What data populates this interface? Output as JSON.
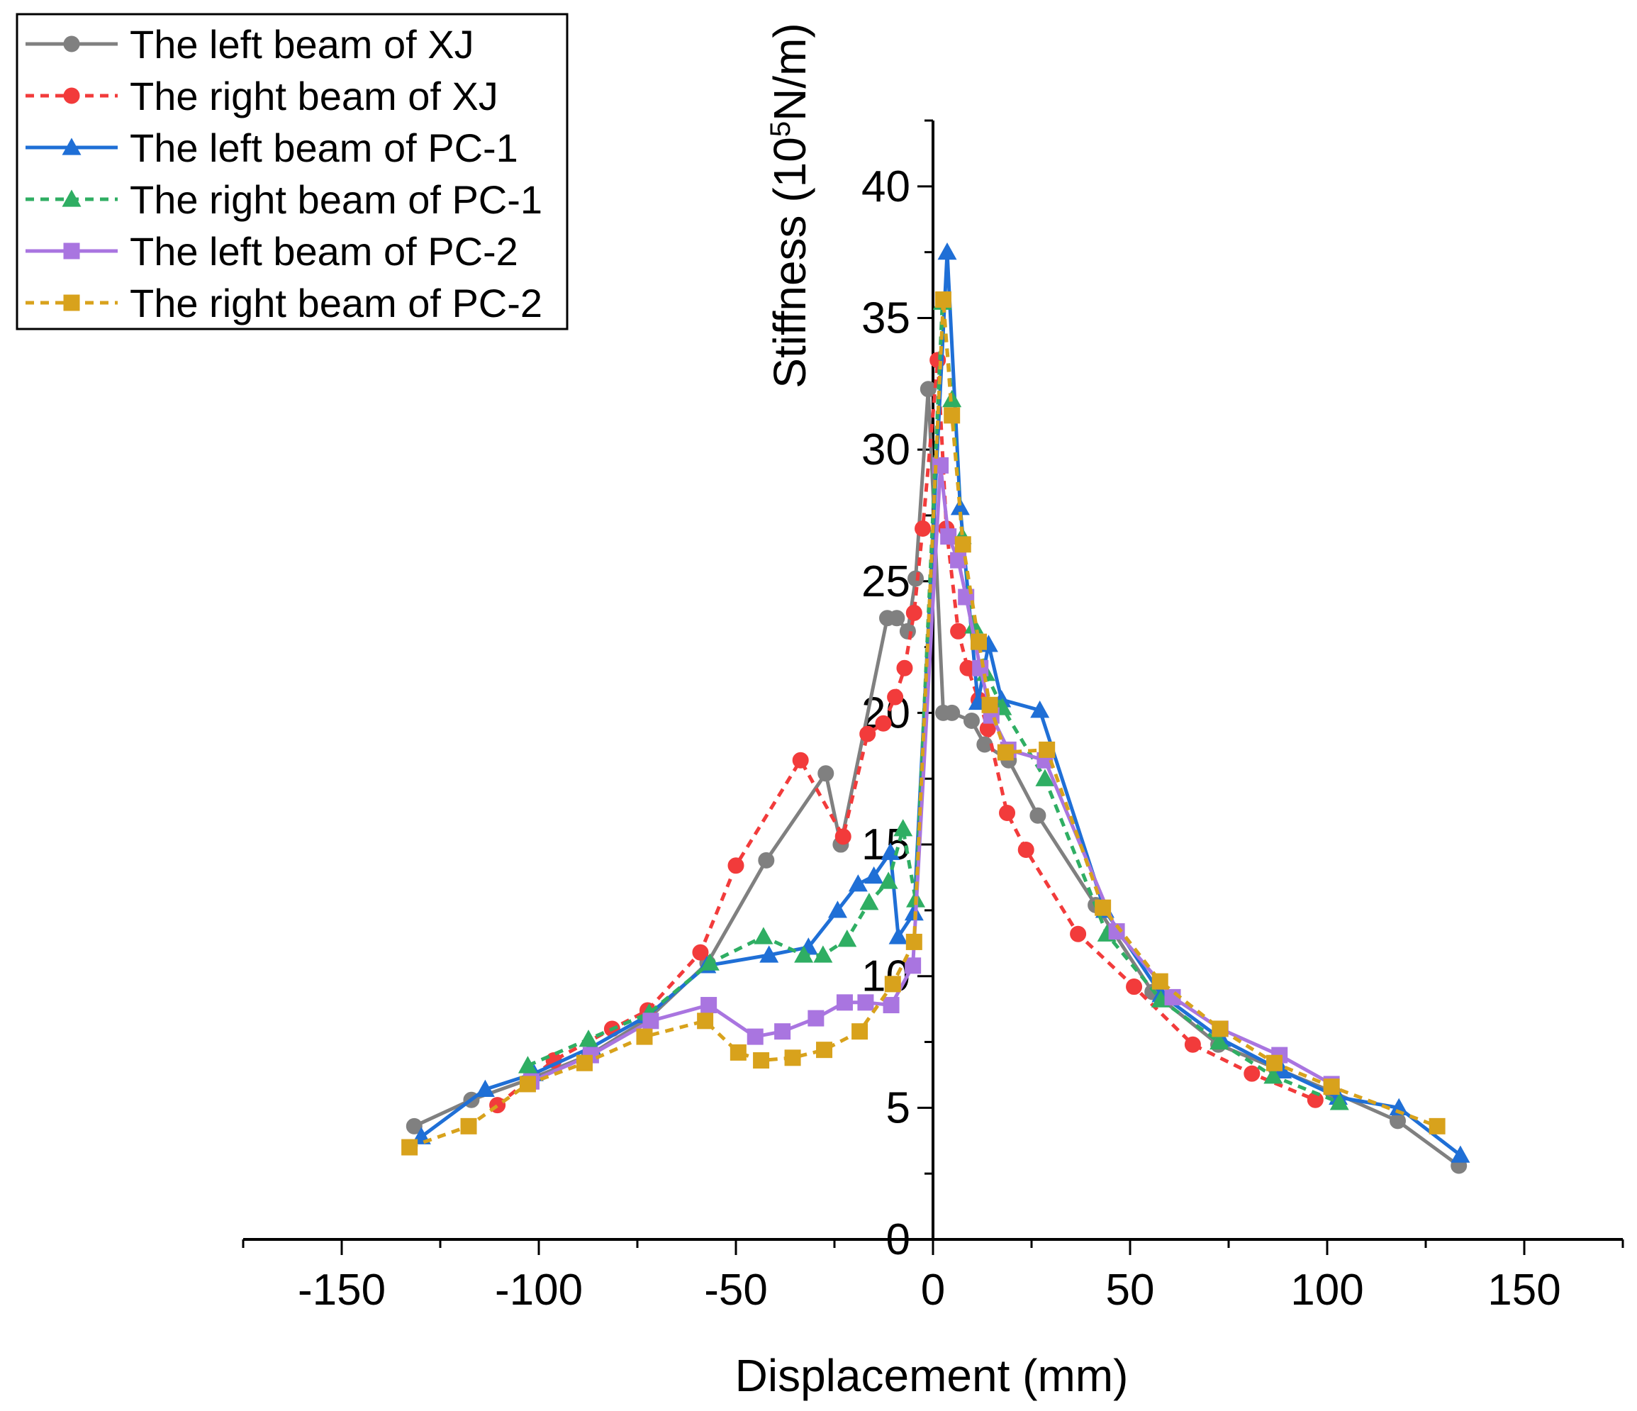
{
  "chart_data": {
    "type": "line",
    "xlabel": "Displacement (mm)",
    "ylabel_prefix": "Stiffness (10",
    "ylabel_sup": "5",
    "ylabel_suffix": "N/m)",
    "xlim": [
      -175,
      175
    ],
    "ylim": [
      0,
      42.5
    ],
    "x_ticks": [
      -150,
      -100,
      -50,
      0,
      50,
      100,
      150
    ],
    "x_tick_labels": [
      "-150",
      "-100",
      "-50",
      "0",
      "50",
      "100",
      "150"
    ],
    "y_ticks": [
      0,
      5,
      10,
      15,
      20,
      25,
      30,
      35,
      40
    ],
    "y_tick_labels": [
      "0",
      "5",
      "10",
      "15",
      "20",
      "25",
      "30",
      "35",
      "40"
    ],
    "grid": false,
    "legend_position": "top-left",
    "series": [
      {
        "name": "The left beam of XJ",
        "color": "#808080",
        "dashed": false,
        "marker": "circle",
        "x": [
          -131.6,
          -117.1,
          -102.1,
          -87.2,
          -72.1,
          -57.2,
          -42.3,
          -27.2,
          -23.4,
          -11.6,
          -9.2,
          -6.4,
          -4.4,
          -1.2,
          2.6,
          4.8,
          9.8,
          13.1,
          19.2,
          26.6,
          41.3,
          55.7,
          72.4,
          87.0,
          101.4,
          117.9,
          133.4
        ],
        "y": [
          4.3,
          5.3,
          6.1,
          7.0,
          8.4,
          10.5,
          14.4,
          17.7,
          15.0,
          23.6,
          23.6,
          23.1,
          25.1,
          32.3,
          20.0,
          20.0,
          19.7,
          18.8,
          18.2,
          16.1,
          12.7,
          9.4,
          7.4,
          6.5,
          5.6,
          4.5,
          2.8
        ]
      },
      {
        "name": "The right beam of XJ",
        "color": "#f23b3b",
        "dashed": true,
        "marker": "circle",
        "x": [
          -110.5,
          -96.2,
          -81.4,
          -72.4,
          -59.0,
          -50.0,
          -33.6,
          -22.8,
          -16.6,
          -12.6,
          -9.6,
          -7.2,
          -4.8,
          -2.6,
          1.2,
          3.4,
          6.4,
          8.8,
          11.6,
          13.9,
          18.8,
          23.6,
          36.8,
          51.0,
          65.9,
          80.9,
          97.0
        ],
        "y": [
          5.1,
          6.8,
          8.0,
          8.7,
          10.9,
          14.2,
          18.2,
          15.3,
          19.2,
          19.6,
          20.6,
          21.7,
          23.8,
          27.0,
          33.4,
          27.0,
          23.1,
          21.7,
          20.5,
          19.4,
          16.2,
          14.8,
          11.6,
          9.6,
          7.4,
          6.3,
          5.3
        ]
      },
      {
        "name": "The left beam of PC-1",
        "color": "#1f6fd6",
        "dashed": false,
        "marker": "triangle",
        "x": [
          -129.8,
          -113.6,
          -101.2,
          -86.6,
          -72.4,
          -57.4,
          -41.6,
          -31.6,
          -24.2,
          -19.0,
          -15.0,
          -10.8,
          -8.8,
          -4.8,
          3.6,
          6.9,
          11.4,
          14.1,
          17.4,
          27.1,
          43.6,
          57.9,
          73.2,
          88.6,
          102.8,
          118.2,
          133.8
        ],
        "y": [
          3.9,
          5.7,
          6.3,
          7.3,
          8.5,
          10.4,
          10.8,
          11.1,
          12.5,
          13.5,
          13.8,
          14.7,
          11.5,
          12.4,
          37.5,
          27.8,
          20.4,
          22.6,
          20.5,
          20.1,
          12.5,
          9.3,
          7.6,
          6.4,
          5.4,
          5.0,
          3.2
        ]
      },
      {
        "name": "The right beam of PC-1",
        "color": "#2fae63",
        "dashed": true,
        "marker": "triangle",
        "x": [
          -102.8,
          -87.4,
          -72.0,
          -56.6,
          -43.0,
          -32.8,
          -27.9,
          -21.8,
          -16.2,
          -11.3,
          -7.6,
          -4.4,
          2.4,
          4.8,
          7.4,
          10.4,
          13.4,
          17.6,
          28.4,
          44.1,
          57.8,
          72.6,
          86.3,
          103.1
        ],
        "y": [
          6.6,
          7.6,
          8.6,
          10.5,
          11.5,
          10.8,
          10.8,
          11.4,
          12.8,
          13.6,
          15.6,
          12.9,
          35.6,
          31.9,
          26.7,
          23.3,
          21.5,
          20.2,
          17.5,
          11.6,
          9.1,
          7.5,
          6.2,
          5.2
        ]
      },
      {
        "name": "The left beam of PC-2",
        "color": "#a975e0",
        "dashed": false,
        "marker": "square",
        "x": [
          -101.9,
          -86.8,
          -71.6,
          -56.9,
          -45.1,
          -38.2,
          -29.7,
          -22.4,
          -17.1,
          -10.6,
          -5.1,
          1.9,
          3.9,
          6.4,
          8.4,
          12.0,
          14.8,
          19.1,
          28.4,
          46.6,
          60.8,
          72.9,
          87.9,
          101.1
        ],
        "y": [
          6.0,
          7.0,
          8.3,
          8.9,
          7.7,
          7.9,
          8.4,
          9.0,
          9.0,
          8.9,
          10.4,
          29.4,
          26.7,
          25.8,
          24.4,
          21.7,
          19.9,
          18.6,
          18.2,
          11.7,
          9.2,
          8.0,
          7.0,
          5.9
        ]
      },
      {
        "name": "The right beam of PC-2",
        "color": "#d8a21c",
        "dashed": true,
        "marker": "square",
        "x": [
          -132.8,
          -117.8,
          -102.8,
          -88.4,
          -73.2,
          -57.8,
          -49.4,
          -43.6,
          -35.6,
          -27.6,
          -18.6,
          -10.2,
          -4.8,
          2.6,
          4.8,
          7.6,
          11.6,
          14.4,
          18.4,
          28.9,
          43.1,
          57.6,
          72.8,
          86.6,
          101.1,
          127.9
        ],
        "y": [
          3.5,
          4.3,
          5.9,
          6.7,
          7.7,
          8.3,
          7.1,
          6.8,
          6.9,
          7.2,
          7.9,
          9.7,
          11.3,
          35.7,
          31.3,
          26.4,
          22.7,
          20.3,
          18.5,
          18.6,
          12.6,
          9.8,
          8.0,
          6.7,
          5.8,
          4.3
        ]
      }
    ]
  }
}
